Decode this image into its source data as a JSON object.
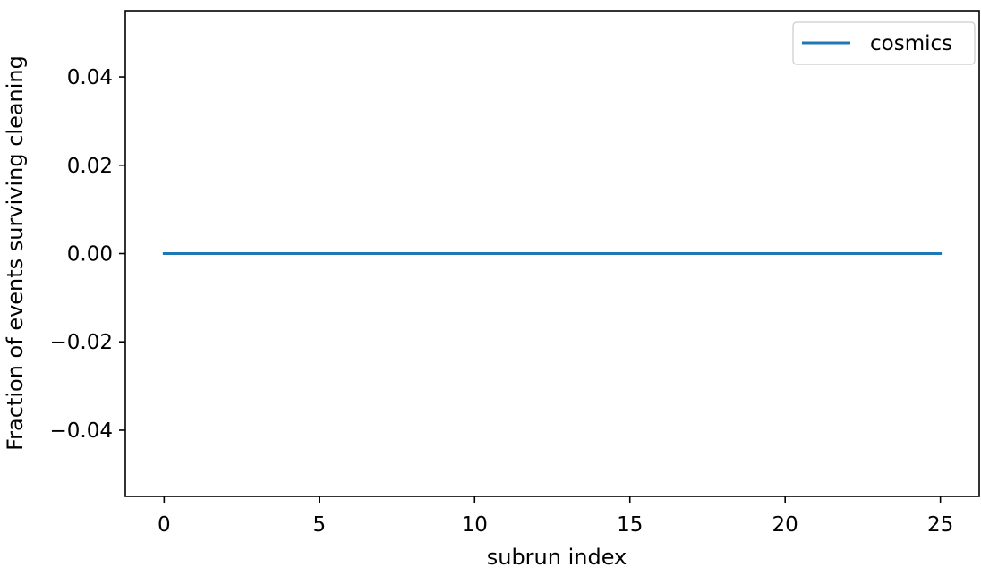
{
  "chart_data": {
    "type": "line",
    "title": "",
    "xlabel": "subrun index",
    "ylabel": "Fraction of events surviving cleaning",
    "xlim": [
      -1.25,
      26.25
    ],
    "ylim": [
      -0.055,
      0.055
    ],
    "xticks": [
      0,
      5,
      10,
      15,
      20,
      25
    ],
    "xtick_labels": [
      "0",
      "5",
      "10",
      "15",
      "20",
      "25"
    ],
    "yticks": [
      0.04,
      0.02,
      0.0,
      -0.02,
      -0.04
    ],
    "ytick_labels": [
      "0.04",
      "0.02",
      "0.00",
      "−0.02",
      "−0.04"
    ],
    "grid": false,
    "legend_position": "top-right",
    "series": [
      {
        "name": "cosmics",
        "color": "#1f77b4",
        "x": [
          0,
          1,
          2,
          3,
          4,
          5,
          6,
          7,
          8,
          9,
          10,
          11,
          12,
          13,
          14,
          15,
          16,
          17,
          18,
          19,
          20,
          21,
          22,
          23,
          24,
          25
        ],
        "y": [
          0,
          0,
          0,
          0,
          0,
          0,
          0,
          0,
          0,
          0,
          0,
          0,
          0,
          0,
          0,
          0,
          0,
          0,
          0,
          0,
          0,
          0,
          0,
          0,
          0,
          0
        ]
      }
    ]
  }
}
